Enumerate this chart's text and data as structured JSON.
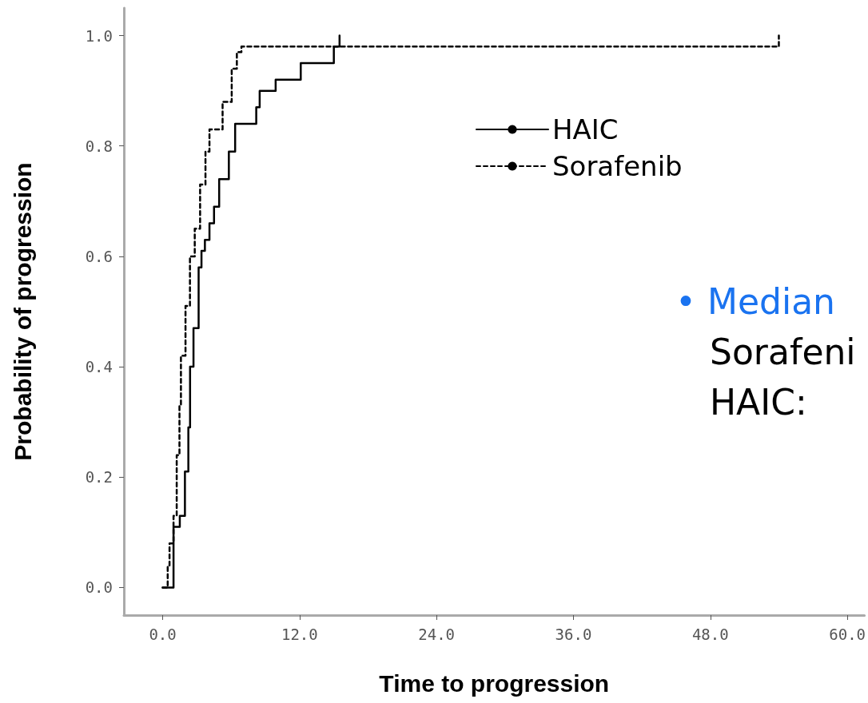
{
  "chart_data": {
    "type": "step",
    "xlabel": "Time to progression",
    "ylabel": "Probability of progression",
    "xlim": [
      -3.4,
      61.5
    ],
    "ylim": [
      -0.05,
      1.05
    ],
    "xticks": [
      {
        "value": 0,
        "label": "0.0"
      },
      {
        "value": 12,
        "label": "12.0"
      },
      {
        "value": 24,
        "label": "24.0"
      },
      {
        "value": 36,
        "label": "36.0"
      },
      {
        "value": 48,
        "label": "48.0"
      },
      {
        "value": 60,
        "label": "60.0"
      }
    ],
    "yticks": [
      {
        "value": 0,
        "label": "0.0"
      },
      {
        "value": 0.2,
        "label": "0.2"
      },
      {
        "value": 0.4,
        "label": "0.4"
      },
      {
        "value": 0.6,
        "label": "0.6"
      },
      {
        "value": 0.8,
        "label": "0.8"
      },
      {
        "value": 1,
        "label": "1.0"
      }
    ],
    "series": [
      {
        "name": "HAIC",
        "color": "#000000",
        "line_style": "solid",
        "x": [
          0,
          0.95,
          1.5,
          1.95,
          2.25,
          2.4,
          2.7,
          3.15,
          3.4,
          3.7,
          4.1,
          4.5,
          4.95,
          5.8,
          6.35,
          8.2,
          8.5,
          9.9,
          12.1,
          15.0,
          15.5
        ],
        "values": [
          0,
          0.11,
          0.13,
          0.21,
          0.29,
          0.4,
          0.47,
          0.58,
          0.61,
          0.63,
          0.66,
          0.69,
          0.74,
          0.79,
          0.84,
          0.87,
          0.9,
          0.92,
          0.95,
          0.98,
          1.0
        ]
      },
      {
        "name": "Sorafenib",
        "color": "#000000",
        "line_style": "dashed",
        "x": [
          0,
          0.44,
          0.6,
          0.95,
          1.23,
          1.47,
          1.6,
          2.0,
          2.39,
          2.81,
          3.28,
          3.75,
          4.1,
          5.25,
          6.05,
          6.5,
          6.9,
          54
        ],
        "values": [
          0,
          0.04,
          0.08,
          0.13,
          0.24,
          0.33,
          0.42,
          0.51,
          0.6,
          0.65,
          0.73,
          0.79,
          0.83,
          0.88,
          0.94,
          0.97,
          0.98,
          1.0
        ]
      }
    ],
    "annotations": [
      "• Median",
      "Sorafeni",
      "HAIC:"
    ],
    "legend": "top right",
    "grid": false,
    "marker": "none"
  }
}
